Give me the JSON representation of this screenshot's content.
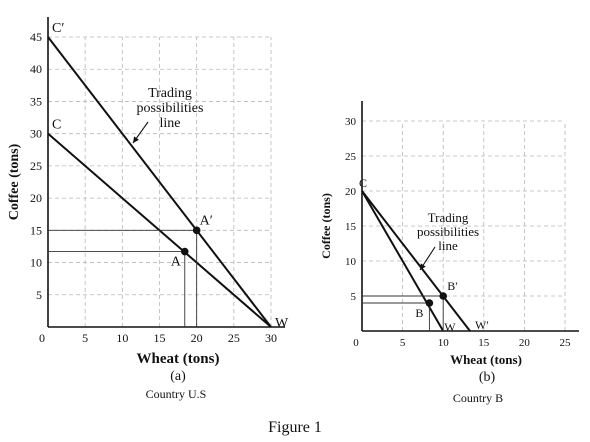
{
  "figure_caption": "Figure 1",
  "chart_data": [
    {
      "type": "line",
      "panel_label": "(a)",
      "caption": "Country U.S",
      "xlabel": "Wheat (tons)",
      "ylabel": "Coffee (tons)",
      "xlim": [
        0,
        30
      ],
      "ylim": [
        0,
        45
      ],
      "xticks": [
        0,
        5,
        10,
        15,
        20,
        25,
        30
      ],
      "yticks": [
        5,
        10,
        15,
        20,
        25,
        30,
        35,
        40,
        45
      ],
      "grid": true,
      "series": [
        {
          "points": [
            [
              0,
              30
            ],
            [
              30,
              0
            ]
          ]
        },
        {
          "points": [
            [
              0,
              45
            ],
            [
              30,
              0
            ]
          ]
        }
      ],
      "points": [
        {
          "label": "A",
          "x": 18.4,
          "y": 11.7,
          "drop_lines": true
        },
        {
          "label": "A′",
          "x": 20,
          "y": 15,
          "drop_lines": true
        }
      ],
      "line_labels": [
        {
          "label": "C′",
          "x": 0,
          "y": 45
        },
        {
          "label": "C",
          "x": 0,
          "y": 30
        },
        {
          "label": "W",
          "x": 30,
          "y": 0
        }
      ],
      "annotation": {
        "lines": [
          "Trading",
          "possibilities",
          "line"
        ],
        "points_to": "C′W line"
      }
    },
    {
      "type": "line",
      "panel_label": "(b)",
      "caption": "Country B",
      "xlabel": "Wheat (tons)",
      "ylabel": "Coffee (tons)",
      "xlim": [
        0,
        25
      ],
      "ylim": [
        0,
        30
      ],
      "xticks": [
        0,
        5,
        10,
        15,
        20,
        25
      ],
      "yticks": [
        5,
        10,
        15,
        20,
        25,
        30
      ],
      "grid": true,
      "series": [
        {
          "points": [
            [
              0,
              20
            ],
            [
              10,
              0
            ]
          ]
        },
        {
          "points": [
            [
              0,
              20
            ],
            [
              13.3,
              0
            ]
          ]
        }
      ],
      "points": [
        {
          "label": "B",
          "x": 8.3,
          "y": 4,
          "drop_lines": true
        },
        {
          "label": "B′",
          "x": 10,
          "y": 5,
          "drop_lines": true
        }
      ],
      "line_labels": [
        {
          "label": "C",
          "x": 0,
          "y": 20
        },
        {
          "label": "W",
          "x": 10,
          "y": 0
        },
        {
          "label": "W′",
          "x": 13.3,
          "y": 0
        }
      ],
      "annotation": {
        "lines": [
          "Trading",
          "possibilities",
          "line"
        ],
        "points_to": "CW′ line"
      }
    }
  ]
}
